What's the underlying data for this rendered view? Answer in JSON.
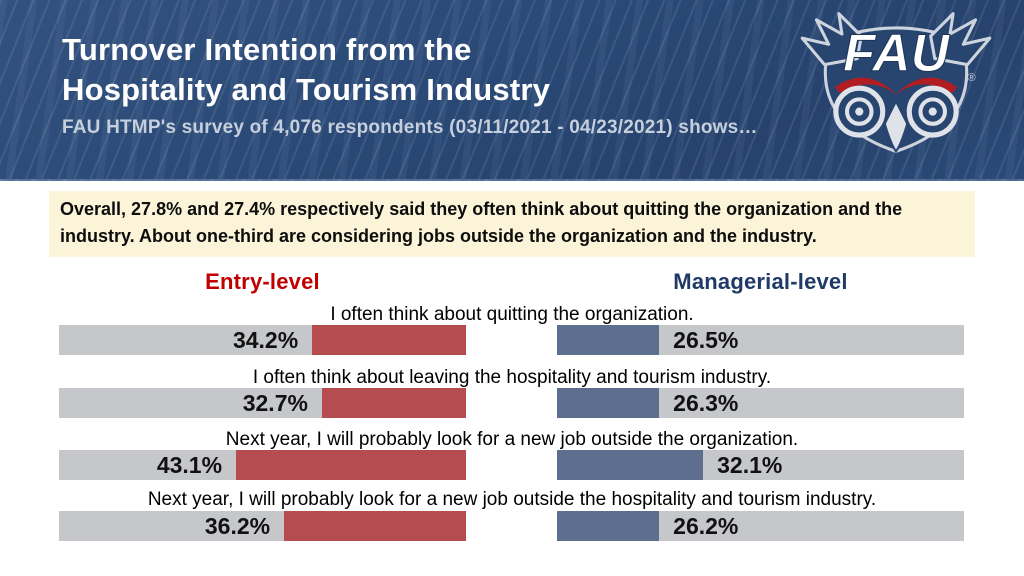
{
  "header": {
    "title_line1": "Turnover Intention from the",
    "title_line2": "Hospitality and Tourism Industry",
    "subtitle": "FAU HTMP's survey of 4,076 respondents (03/11/2021 - 04/23/2021) shows…",
    "logo_text": "FAU",
    "logo_registered_mark": "®"
  },
  "callout": {
    "text": "Overall, 27.8% and 27.4% respectively said they often think about quitting the organization and the industry. About one-third are considering jobs outside the organization and the industry."
  },
  "columns": {
    "entry_label": "Entry-level",
    "managerial_label": "Managerial-level"
  },
  "colors": {
    "header_bg": "#2b4a77",
    "entry_bar": "#b54c50",
    "managerial_bar": "#5d6e8e",
    "bar_track": "#c5c7ca",
    "callout_bg": "#fbf4d8",
    "entry_header_text": "#c00000",
    "managerial_header_text": "#1f3a66",
    "eyebrow_red": "#b01e24"
  },
  "chart_data": {
    "type": "bar",
    "variant": "diverging-horizontal",
    "title": "Turnover Intention from the Hospitality and Tourism Industry",
    "subtitle": "FAU HTMP's survey of 4,076 respondents (03/11/2021 - 04/23/2021) shows…",
    "categories": [
      "I often think about quitting the organization.",
      "I often think about leaving the hospitality and tourism industry.",
      "Next year, I will probably look for a new job outside the organization.",
      "Next year, I will probably look for a new job outside the hospitality and tourism industry."
    ],
    "series": [
      {
        "name": "Entry-level",
        "color": "#b54c50",
        "values": [
          34.2,
          32.7,
          43.1,
          36.2
        ]
      },
      {
        "name": "Managerial-level",
        "color": "#5d6e8e",
        "values": [
          26.5,
          26.3,
          32.1,
          26.2
        ]
      }
    ],
    "value_format": "percent",
    "legend_position": "top",
    "grid": false
  },
  "rows": [
    {
      "question": "I often think about quitting the organization.",
      "entry": {
        "label": "34.2%",
        "value": 34.2,
        "fill_pct": 37.8
      },
      "managerial": {
        "label": "26.5%",
        "value": 26.5,
        "fill_pct": 25.1
      }
    },
    {
      "question": "I often think about leaving the hospitality and tourism industry.",
      "entry": {
        "label": "32.7%",
        "value": 32.7,
        "fill_pct": 35.4
      },
      "managerial": {
        "label": "26.3%",
        "value": 26.3,
        "fill_pct": 25.1
      }
    },
    {
      "question": "Next year, I will probably look for a new job outside the organization.",
      "entry": {
        "label": "43.1%",
        "value": 43.1,
        "fill_pct": 56.5
      },
      "managerial": {
        "label": "32.1%",
        "value": 32.1,
        "fill_pct": 35.9
      }
    },
    {
      "question": "Next year, I will probably look for a new job outside the hospitality and tourism industry.",
      "entry": {
        "label": "36.2%",
        "value": 36.2,
        "fill_pct": 44.7
      },
      "managerial": {
        "label": "26.2%",
        "value": 26.2,
        "fill_pct": 25.1
      }
    }
  ]
}
